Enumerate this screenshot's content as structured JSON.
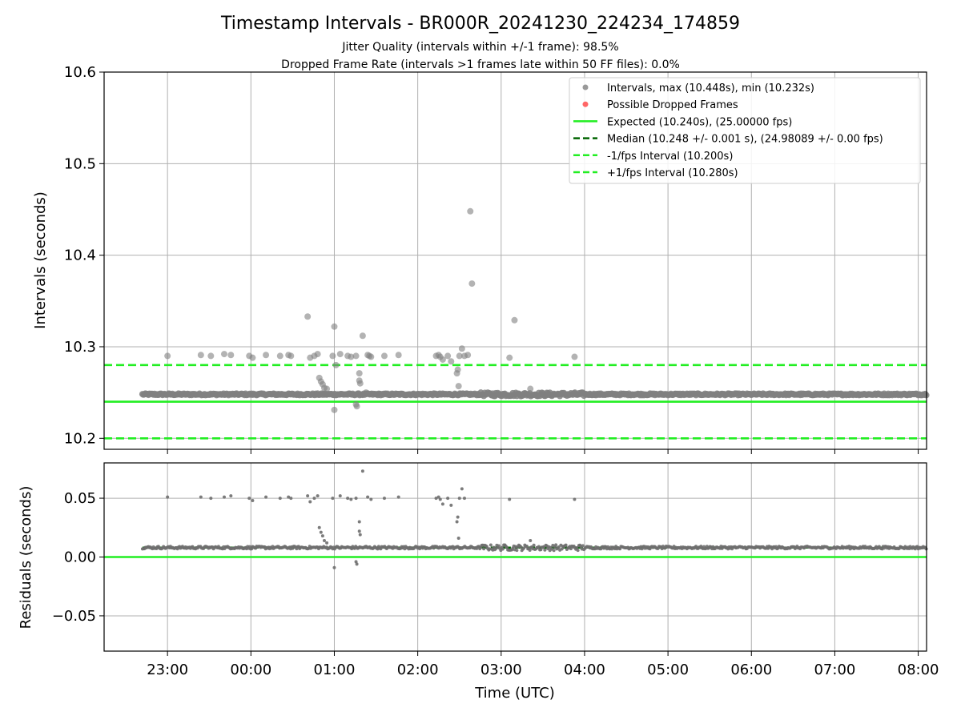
{
  "figure": {
    "title": "Timestamp Intervals - BR000R_20241230_224234_174859",
    "subtitle_1": "Jitter Quality (intervals within +/-1 frame): 98.5%",
    "subtitle_2": "Dropped Frame Rate (intervals >1 frames late within 50 FF files): 0.0%"
  },
  "chart_data": [
    {
      "type": "scatter",
      "ylabel": "Intervals (seconds)",
      "xlabel": "",
      "x_unit": "UTC time, hours relative to 2024-12-31 00:00",
      "xlim": [
        -1.76,
        8.1
      ],
      "ylim": [
        10.188,
        10.6
      ],
      "yticks": [
        10.2,
        10.3,
        10.4,
        10.5,
        10.6
      ],
      "ytick_labels": [
        "10.2",
        "10.3",
        "10.4",
        "10.5",
        "10.6"
      ],
      "grid": true,
      "legend_position": "top-right",
      "legend": [
        {
          "label": "Intervals, max (10.448s), min (10.232s)",
          "marker": "circle",
          "color": "#999999"
        },
        {
          "label": "Possible Dropped Frames",
          "marker": "circle",
          "color": "#ff6666"
        },
        {
          "label": "Expected (10.240s), (25.00000 fps)",
          "style": "solid",
          "color": "#22ee22"
        },
        {
          "label": "Median (10.248 +/- 0.001 s), (24.98089 +/- 0.00 fps)",
          "style": "dashed",
          "color": "#006400"
        },
        {
          "label": "-1/fps Interval (10.200s)",
          "style": "dashed",
          "color": "#22ee22"
        },
        {
          "label": "+1/fps Interval (10.280s)",
          "style": "dashed",
          "color": "#22ee22"
        }
      ],
      "reference_lines": [
        {
          "name": "expected",
          "y": 10.24,
          "style": "solid",
          "color": "#22ee22"
        },
        {
          "name": "median",
          "y": 10.248,
          "style": "dashed",
          "color": "#006400",
          "x_start": -1.3
        },
        {
          "name": "minus-one-fps",
          "y": 10.2,
          "style": "dashed",
          "color": "#22ee22"
        },
        {
          "name": "plus-one-fps",
          "y": 10.28,
          "style": "dashed",
          "color": "#22ee22"
        }
      ],
      "baseline": {
        "y": 10.248,
        "x_start": -1.3,
        "x_end": 8.1,
        "note": "dense band of intervals near the median"
      },
      "outliers": [
        [
          -1.0,
          10.29
        ],
        [
          -0.6,
          10.291
        ],
        [
          -0.48,
          10.29
        ],
        [
          -0.32,
          10.292
        ],
        [
          -0.24,
          10.291
        ],
        [
          -0.02,
          10.29
        ],
        [
          0.02,
          10.288
        ],
        [
          0.18,
          10.291
        ],
        [
          0.35,
          10.29
        ],
        [
          0.45,
          10.291
        ],
        [
          0.48,
          10.29
        ],
        [
          0.68,
          10.333
        ],
        [
          0.71,
          10.288
        ],
        [
          0.76,
          10.29
        ],
        [
          0.8,
          10.292
        ],
        [
          0.82,
          10.266
        ],
        [
          0.84,
          10.262
        ],
        [
          0.86,
          10.259
        ],
        [
          0.88,
          10.255
        ],
        [
          0.91,
          10.254
        ],
        [
          0.98,
          10.29
        ],
        [
          1.0,
          10.322
        ],
        [
          1.02,
          10.28
        ],
        [
          1.0,
          10.231
        ],
        [
          1.07,
          10.292
        ],
        [
          1.16,
          10.29
        ],
        [
          1.2,
          10.289
        ],
        [
          1.26,
          10.29
        ],
        [
          1.26,
          10.237
        ],
        [
          1.27,
          10.235
        ],
        [
          1.3,
          10.271
        ],
        [
          1.3,
          10.263
        ],
        [
          1.31,
          10.26
        ],
        [
          1.34,
          10.312
        ],
        [
          1.38,
          10.25
        ],
        [
          1.4,
          10.291
        ],
        [
          1.44,
          10.289
        ],
        [
          1.42,
          10.29
        ],
        [
          1.6,
          10.29
        ],
        [
          1.77,
          10.291
        ],
        [
          2.22,
          10.29
        ],
        [
          2.25,
          10.291
        ],
        [
          2.27,
          10.289
        ],
        [
          2.3,
          10.286
        ],
        [
          2.36,
          10.29
        ],
        [
          2.4,
          10.284
        ],
        [
          2.47,
          10.271
        ],
        [
          2.48,
          10.275
        ],
        [
          2.49,
          10.257
        ],
        [
          2.5,
          10.29
        ],
        [
          2.53,
          10.298
        ],
        [
          2.56,
          10.29
        ],
        [
          2.6,
          10.291
        ],
        [
          2.63,
          10.448
        ],
        [
          2.65,
          10.369
        ],
        [
          3.1,
          10.288
        ],
        [
          3.16,
          10.329
        ],
        [
          3.35,
          10.254
        ],
        [
          3.88,
          10.289
        ]
      ]
    },
    {
      "type": "scatter",
      "ylabel": "Residuals (seconds)",
      "xlabel": "Time (UTC)",
      "x_unit": "UTC time, hours relative to 2024-12-31 00:00",
      "xlim": [
        -1.76,
        8.1
      ],
      "ylim": [
        -0.08,
        0.08
      ],
      "yticks": [
        -0.05,
        0.0,
        0.05
      ],
      "ytick_labels": [
        "−0.05",
        "0.00",
        "0.05"
      ],
      "xticks": [
        -1,
        0,
        1,
        2,
        3,
        4,
        5,
        6,
        7,
        8
      ],
      "xtick_labels": [
        "23:00",
        "00:00",
        "01:00",
        "02:00",
        "03:00",
        "04:00",
        "05:00",
        "06:00",
        "07:00",
        "08:00"
      ],
      "grid": true,
      "reference_lines": [
        {
          "name": "zero",
          "y": 0.0,
          "style": "solid",
          "color": "#22ee22"
        },
        {
          "name": "median-residual",
          "y": 0.008,
          "style": "dashed",
          "color": "#006400",
          "x_start": -1.3
        }
      ],
      "baseline": {
        "y": 0.008,
        "x_start": -1.3,
        "x_end": 8.1
      },
      "outliers": [
        [
          -1.0,
          0.051
        ],
        [
          -0.6,
          0.051
        ],
        [
          -0.48,
          0.05
        ],
        [
          -0.32,
          0.051
        ],
        [
          -0.24,
          0.052
        ],
        [
          -0.02,
          0.05
        ],
        [
          0.02,
          0.048
        ],
        [
          0.18,
          0.051
        ],
        [
          0.35,
          0.05
        ],
        [
          0.45,
          0.051
        ],
        [
          0.48,
          0.05
        ],
        [
          0.68,
          0.052
        ],
        [
          0.71,
          0.047
        ],
        [
          0.76,
          0.05
        ],
        [
          0.8,
          0.052
        ],
        [
          0.82,
          0.025
        ],
        [
          0.84,
          0.021
        ],
        [
          0.86,
          0.018
        ],
        [
          0.88,
          0.014
        ],
        [
          0.91,
          0.012
        ],
        [
          0.98,
          0.05
        ],
        [
          1.0,
          -0.009
        ],
        [
          1.07,
          0.052
        ],
        [
          1.16,
          0.05
        ],
        [
          1.2,
          0.049
        ],
        [
          1.26,
          0.05
        ],
        [
          1.26,
          -0.004
        ],
        [
          1.27,
          -0.006
        ],
        [
          1.3,
          0.03
        ],
        [
          1.3,
          0.022
        ],
        [
          1.31,
          0.019
        ],
        [
          1.34,
          0.073
        ],
        [
          1.38,
          0.009
        ],
        [
          1.4,
          0.051
        ],
        [
          1.44,
          0.049
        ],
        [
          1.6,
          0.05
        ],
        [
          1.77,
          0.051
        ],
        [
          2.22,
          0.05
        ],
        [
          2.25,
          0.051
        ],
        [
          2.27,
          0.049
        ],
        [
          2.3,
          0.045
        ],
        [
          2.36,
          0.05
        ],
        [
          2.4,
          0.044
        ],
        [
          2.47,
          0.03
        ],
        [
          2.48,
          0.034
        ],
        [
          2.49,
          0.016
        ],
        [
          2.5,
          0.05
        ],
        [
          2.53,
          0.058
        ],
        [
          2.56,
          0.05
        ],
        [
          3.1,
          0.049
        ],
        [
          3.35,
          0.014
        ],
        [
          3.88,
          0.049
        ]
      ]
    }
  ]
}
